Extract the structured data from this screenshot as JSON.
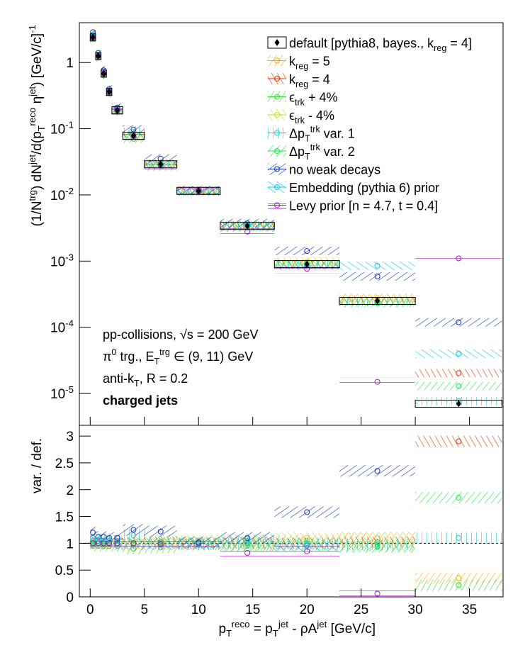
{
  "chart_data": {
    "type": "ratio",
    "bins": [
      0,
      0.5,
      1,
      1.5,
      2,
      3,
      5,
      8,
      12,
      17,
      23,
      30,
      38
    ],
    "xlim": [
      -1,
      38.1
    ],
    "xticks": [
      0,
      5,
      10,
      15,
      20,
      25,
      30,
      35
    ],
    "xlabel": "p_{T}^{reco} = p_{T}^{jet} - ρA^{jet} [GeV/c]",
    "ylabel": "(1/N^{trg}) dN^{jet}/d(p_{T}^{reco} η^{jet}) [GeV/c]^{-1}",
    "log_y": true,
    "ylim": [
      3.3e-06,
      4
    ],
    "yticks": [
      {
        "value": 1e-05,
        "label": "10^{-5}"
      },
      {
        "value": 0.0001,
        "label": "10^{-4}"
      },
      {
        "value": 0.001,
        "label": "10^{-3}"
      },
      {
        "value": 0.01,
        "label": "10^{-2}"
      },
      {
        "value": 0.1,
        "label": "10^{-1}"
      },
      1
    ],
    "ratio_ylabel": "var. / def.",
    "ratio_ylim": [
      0,
      3.2
    ],
    "ratio_yticks": [
      0,
      0.5,
      1,
      1.5,
      2,
      2.5,
      3
    ],
    "reference": 1,
    "legend": "upper right",
    "annotations": [
      "pp-collisions, √s = 200 GeV",
      "π^{0} trg., E_{T}^{trg} ∈ (9, 11) GeV",
      "anti-k_{T}, R = 0.2",
      "charged jets"
    ],
    "default": {
      "name": "default [pythia8, bayes., k_{reg} = 4]",
      "color": "#000000",
      "values": [
        2.4,
        1.25,
        0.68,
        0.36,
        0.19,
        0.078,
        0.029,
        0.0115,
        0.0034,
        0.0009,
        0.00025,
        7e-06
      ]
    },
    "series": [
      {
        "name": "k_{reg} = 5",
        "color": "#f0b000",
        "ratio": [
          1.02,
          1.0,
          1.0,
          0.98,
          1.0,
          0.98,
          1.0,
          1.0,
          1.02,
          1.05,
          1.1,
          0.35
        ]
      },
      {
        "name": "k_{reg} = 4",
        "color": "#dd3300",
        "ratio": [
          1.0,
          1.0,
          1.0,
          1.0,
          1.0,
          1.0,
          1.02,
          1.0,
          1.0,
          1.0,
          1.02,
          2.9
        ]
      },
      {
        "name": "ϵ_{trk} + 4%",
        "color": "#33dd33",
        "ratio": [
          0.95,
          0.95,
          0.95,
          0.95,
          0.95,
          0.9,
          0.92,
          0.97,
          0.95,
          0.97,
          0.95,
          0.22
        ]
      },
      {
        "name": "ϵ_{trk} - 4%",
        "color": "#ccdd22",
        "ratio": [
          1.05,
          1.05,
          1.05,
          1.05,
          1.05,
          1.05,
          1.05,
          1.05,
          1.05,
          1.1,
          1.1,
          null
        ]
      },
      {
        "name": "Δp_{T}^{trk} var. 1",
        "color": "#22cccc",
        "ratio": [
          1.1,
          1.05,
          1.05,
          1.05,
          1.05,
          1.15,
          1.0,
          0.98,
          1.0,
          1.0,
          0.98,
          1.1
        ]
      },
      {
        "name": "Δp_{T}^{trk} var. 2",
        "color": "#11ee44",
        "ratio": [
          0.98,
          1.0,
          0.98,
          1.0,
          0.98,
          0.97,
          1.0,
          1.0,
          0.95,
          0.97,
          0.93,
          1.85
        ]
      },
      {
        "name": "no weak decays",
        "color": "#1133bb",
        "ratio": [
          1.2,
          1.12,
          1.12,
          1.1,
          1.1,
          1.25,
          1.22,
          1.02,
          1.1,
          1.58,
          2.35,
          17
        ]
      },
      {
        "name": "Embedding (pythia 6) prior",
        "color": "#00ccee",
        "ratio": [
          1.05,
          1.05,
          1.05,
          1.05,
          1.0,
          1.0,
          0.98,
          1.0,
          1.05,
          0.95,
          3.4,
          5.7
        ]
      },
      {
        "name": "Levy prior [n = 4.7, t = 0.4]",
        "color": "#aa11cc",
        "ratio": [
          1.0,
          1.0,
          1.0,
          1.0,
          1.0,
          1.0,
          0.98,
          1.0,
          0.82,
          0.85,
          0.06,
          157
        ]
      }
    ]
  }
}
